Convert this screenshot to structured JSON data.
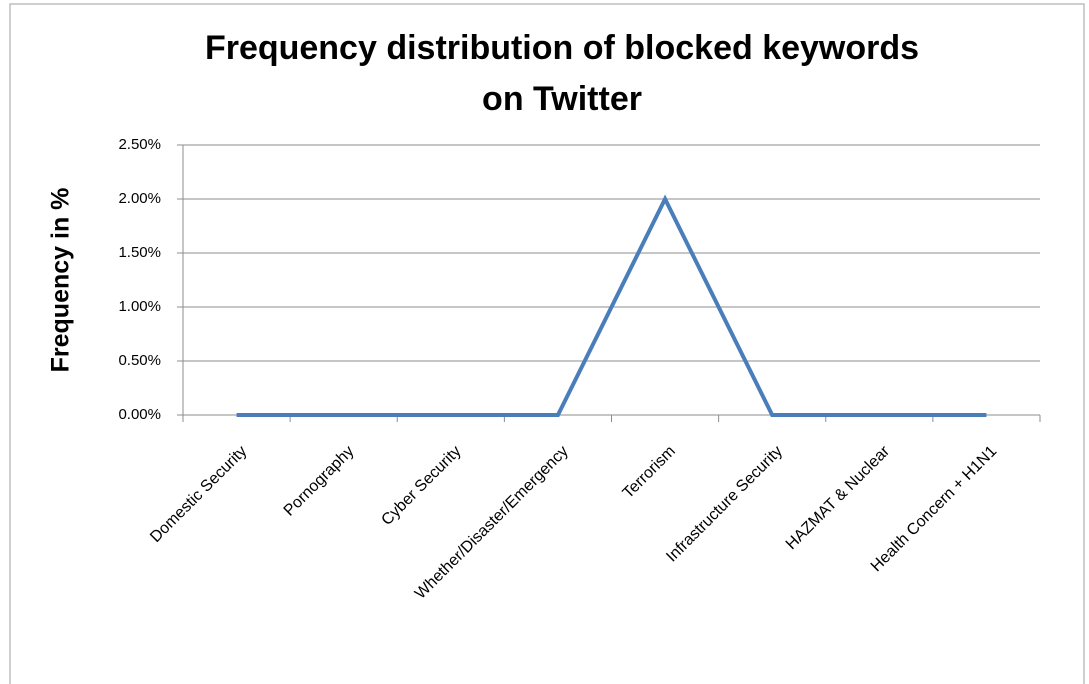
{
  "chart_data": {
    "type": "line",
    "title": [
      "Frequency distribution of blocked keywords",
      "on Twitter"
    ],
    "y_label": "Frequency  in %",
    "categories": [
      "Domestic Security",
      "Pornography",
      "Cyber Security",
      "Whether/Disaster/Emergency",
      "Terrorism",
      "Infrastructure Security",
      "HAZMAT & Nuclear",
      "Health Concern + H1N1"
    ],
    "values": [
      0,
      0,
      0,
      0,
      2,
      0,
      0,
      0
    ],
    "color": "#4a7ebb",
    "ylim": [
      0,
      2.5
    ],
    "yticks": [
      {
        "value": 0,
        "label": "0.00%"
      },
      {
        "value": 0.5,
        "label": "0.50%"
      },
      {
        "value": 1,
        "label": "1.00%"
      },
      {
        "value": 1.5,
        "label": "1.50%"
      },
      {
        "value": 2,
        "label": "2.00%"
      },
      {
        "value": 2.5,
        "label": "2.50%"
      }
    ],
    "grid": true
  }
}
